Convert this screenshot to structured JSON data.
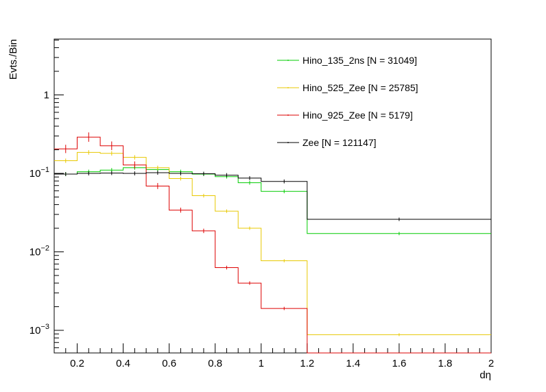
{
  "chart_data": {
    "type": "line",
    "step": true,
    "scale_y": "log",
    "title": "",
    "xlabel": "dη",
    "ylabel": "Evts./Bin",
    "xlim": [
      0.1,
      2.0
    ],
    "ylim": [
      0.0005,
      5
    ],
    "x_edges": [
      0.1,
      0.2,
      0.3,
      0.4,
      0.5,
      0.6,
      0.7,
      0.8,
      0.9,
      1.0,
      1.2,
      2.0
    ],
    "x_ticks": [
      {
        "value": 0.2,
        "label": "0.2"
      },
      {
        "value": 0.4,
        "label": "0.4"
      },
      {
        "value": 0.6,
        "label": "0.6"
      },
      {
        "value": 0.8,
        "label": "0.8"
      },
      {
        "value": 1.0,
        "label": "1"
      },
      {
        "value": 1.2,
        "label": "1.2"
      },
      {
        "value": 1.4,
        "label": "1.4"
      },
      {
        "value": 1.6,
        "label": "1.6"
      },
      {
        "value": 1.8,
        "label": "1.8"
      },
      {
        "value": 2.0,
        "label": "2"
      }
    ],
    "y_ticks": [
      {
        "value": 0.001,
        "base": "10",
        "exp": "−3"
      },
      {
        "value": 0.01,
        "base": "10",
        "exp": "−2"
      },
      {
        "value": 0.1,
        "base": "10",
        "exp": "−1"
      },
      {
        "value": 1,
        "base": "1",
        "exp": ""
      }
    ],
    "series": [
      {
        "name": "Hino_135_2ns [N = 31049]",
        "color": "#00cc00",
        "values": [
          0.098,
          0.105,
          0.11,
          0.118,
          0.112,
          0.105,
          0.098,
          0.091,
          0.076,
          0.059,
          0.0171
        ]
      },
      {
        "name": "Hino_525_Zee [N = 25785]",
        "color": "#e8c800",
        "values": [
          0.145,
          0.185,
          0.18,
          0.16,
          0.118,
          0.086,
          0.052,
          0.033,
          0.02,
          0.0077,
          0.00088
        ]
      },
      {
        "name": "Hino_925_Zee [N = 5179]",
        "color": "#dd0000",
        "values": [
          0.205,
          0.29,
          0.225,
          0.128,
          0.069,
          0.034,
          0.0185,
          0.0063,
          0.004,
          0.0019,
          0.0
        ]
      },
      {
        "name": "Zee [N = 121147]",
        "color": "#000000",
        "values": [
          0.098,
          0.1,
          0.101,
          0.1,
          0.102,
          0.1,
          0.099,
          0.095,
          0.087,
          0.079,
          0.026
        ]
      }
    ],
    "legend": "top-right"
  }
}
